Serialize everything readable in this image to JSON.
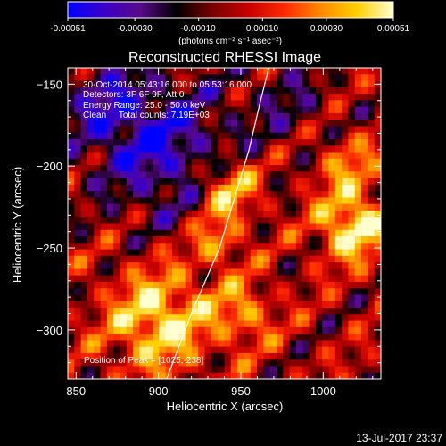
{
  "colorbar": {
    "ticks": [
      "-0.00051",
      "-0.00030",
      "-0.00010",
      "0.00010",
      "0.00030",
      "0.00051"
    ],
    "tick_values": [
      -0.00051,
      -0.0003,
      -0.0001,
      0.0001,
      0.0003,
      0.00051
    ],
    "range": [
      -0.00051,
      0.00051
    ],
    "units": "(photons cm⁻² s⁻¹ asec⁻²)",
    "colors": [
      "#0000ff",
      "#3a00c8",
      "#5a0a8a",
      "#000000",
      "#7a0000",
      "#c80000",
      "#ff2a00",
      "#ff8a00",
      "#ffd000",
      "#ffffd0"
    ]
  },
  "chart_data": {
    "type": "heatmap",
    "title": "Reconstructed RHESSI Image",
    "xlabel": "Heliocentric X (arcsec)",
    "ylabel": "Heliocentric Y (arcsec)",
    "xlim": [
      845,
      1035
    ],
    "ylim": [
      -330,
      -140
    ],
    "x_ticks": [
      850,
      900,
      950,
      1000
    ],
    "y_ticks": [
      -150,
      -200,
      -250,
      -300
    ],
    "x_tick_labels": [
      "850",
      "900",
      "950",
      "1000"
    ],
    "y_tick_labels": [
      "−150",
      "−200",
      "−250",
      "−300"
    ],
    "annotations": [
      "30-Oct-2014 05:43:16.000 to 05:53:16.000",
      "Detectors: 3F 6F 9F, Att 0",
      "Energy Range: 25.0 - 50.0 keV",
      "Clean     Total counts: 7.19E+03"
    ],
    "peak_label": "Position of Peak = [1025,-238]",
    "peak": [
      1025,
      -238
    ],
    "limb_line": [
      [
        905,
        -330
      ],
      [
        920,
        -290
      ],
      [
        937,
        -250
      ],
      [
        946,
        -220
      ],
      [
        955,
        -190
      ],
      [
        962,
        -160
      ],
      [
        967,
        -140
      ]
    ]
  },
  "footer": {
    "timestamp": "13-Jul-2017 23:37"
  }
}
